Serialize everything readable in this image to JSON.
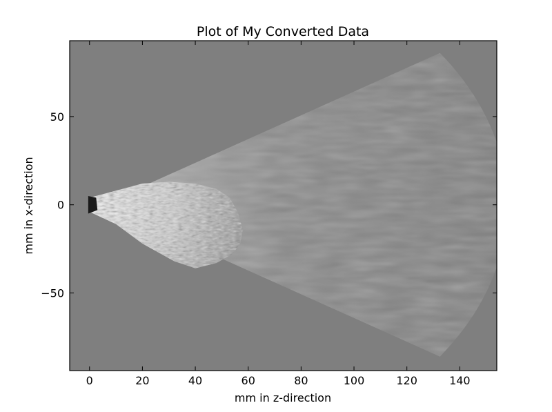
{
  "chart_data": {
    "type": "heatmap",
    "title": "Plot of My Converted Data",
    "xlabel": "mm in z-direction",
    "ylabel": "mm in x-direction",
    "xlim": [
      -7.5,
      154
    ],
    "ylim": [
      -94,
      93
    ],
    "x_ticks": [
      {
        "value": 0,
        "label": "0"
      },
      {
        "value": 20,
        "label": "20"
      },
      {
        "value": 40,
        "label": "40"
      },
      {
        "value": 60,
        "label": "60"
      },
      {
        "value": 80,
        "label": "80"
      },
      {
        "value": 100,
        "label": "100"
      },
      {
        "value": 120,
        "label": "120"
      },
      {
        "value": 140,
        "label": "140"
      }
    ],
    "y_ticks": [
      {
        "value": 50,
        "label": "50"
      },
      {
        "value": 0,
        "label": "0"
      },
      {
        "value": -50,
        "label": "−50"
      }
    ],
    "colormap": "gray",
    "background_color": "#7f7f7f",
    "sector": {
      "apex": [
        0,
        0
      ],
      "half_angle_deg": 33,
      "max_radius": 158
    },
    "bright_region": {
      "shape": "sector-lobe",
      "max_z": 58,
      "min_x": -37,
      "max_x": 13
    }
  }
}
